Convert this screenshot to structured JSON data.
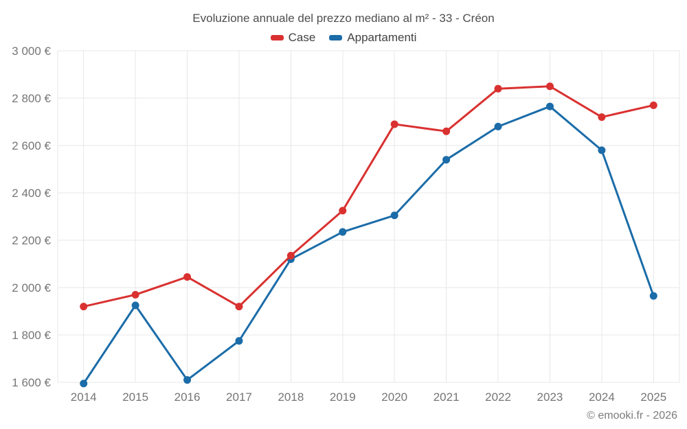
{
  "chart_data": {
    "type": "line",
    "title": "Evoluzione annuale del prezzo mediano al m² - 33 - Créon",
    "categories": [
      "2014",
      "2015",
      "2016",
      "2017",
      "2018",
      "2019",
      "2020",
      "2021",
      "2022",
      "2023",
      "2024",
      "2025"
    ],
    "series": [
      {
        "name": "Case",
        "color": "#d93130",
        "values": [
          1920,
          1970,
          2045,
          1920,
          2135,
          2325,
          2690,
          2660,
          2840,
          2850,
          2720,
          2770
        ]
      },
      {
        "name": "Appartamenti",
        "color": "#1b6ca8",
        "values": [
          1595,
          1925,
          1610,
          1775,
          2120,
          2235,
          2305,
          2540,
          2680,
          2765,
          2580,
          1965
        ]
      }
    ],
    "ylim": [
      1600,
      3000
    ],
    "yticks": [
      1600,
      1800,
      2000,
      2200,
      2400,
      2600,
      2800,
      3000
    ],
    "ytick_labels": [
      "1 600 €",
      "1 800 €",
      "2 000 €",
      "2 200 €",
      "2 400 €",
      "2 600 €",
      "2 800 €",
      "3 000 €"
    ],
    "grid": true,
    "legend_position": "top",
    "footer": "© emooki.fr - 2026",
    "style": {
      "grid_color": "#e7e7e7",
      "tick_label_color": "#757575",
      "title_color": "#4e4e4e",
      "legend_text_color": "#424242",
      "footer_color": "#7b7b7b",
      "background": "#ffffff"
    }
  }
}
